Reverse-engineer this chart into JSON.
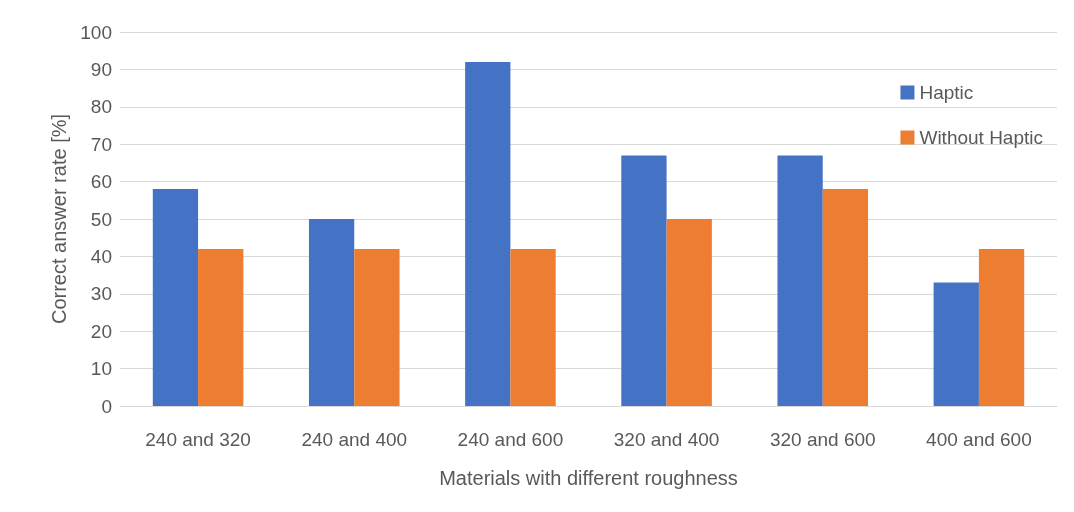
{
  "chart_data": {
    "type": "bar",
    "xlabel": "Materials with different roughness",
    "ylabel": "Correct answer rate [%]",
    "categories": [
      "240 and 320",
      "240 and 400",
      "240 and 600",
      "320 and 400",
      "320 and 600",
      "400 and 600"
    ],
    "series": [
      {
        "name": "Haptic",
        "color": "#4472c4",
        "values": [
          58,
          50,
          92,
          67,
          67,
          33
        ]
      },
      {
        "name": "Without Haptic",
        "color": "#ed7d31",
        "values": [
          42,
          42,
          42,
          50,
          58,
          42
        ]
      }
    ],
    "ylim": [
      0,
      100
    ],
    "yticks": [
      0,
      10,
      20,
      30,
      40,
      50,
      60,
      70,
      80,
      90,
      100
    ],
    "grid": "y",
    "legend": "top right"
  }
}
